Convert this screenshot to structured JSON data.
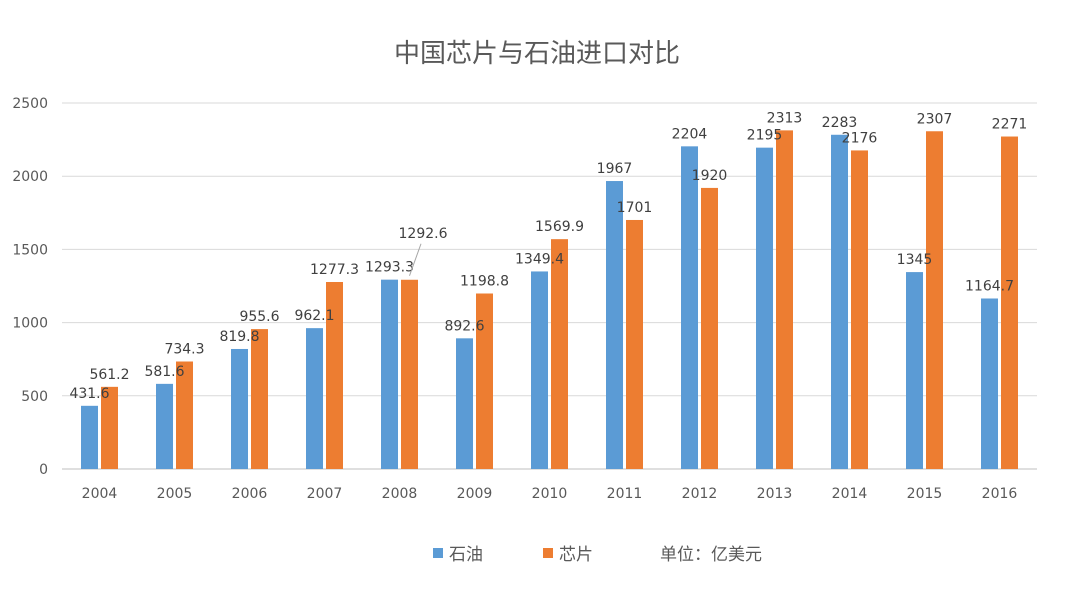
{
  "chart_data": {
    "type": "bar",
    "title": "中国芯片与石油进口对比",
    "xlabel": "",
    "ylabel": "",
    "categories": [
      "2004",
      "2005",
      "2006",
      "2007",
      "2008",
      "2009",
      "2010",
      "2011",
      "2012",
      "2013",
      "2014",
      "2015",
      "2016"
    ],
    "series": [
      {
        "name": "石油",
        "color": "#5b9bd5",
        "values": [
          431.6,
          581.6,
          819.8,
          962.1,
          1293.3,
          892.6,
          1349.4,
          1967,
          2204,
          2195,
          2283,
          1345,
          1164.7
        ],
        "labels": [
          "431.6",
          "581.6",
          "819.8",
          "962.1",
          "1293.3",
          "892.6",
          "1349.4",
          "1967",
          "2204",
          "2195",
          "2283",
          "1345",
          "1164.7"
        ]
      },
      {
        "name": "芯片",
        "color": "#ed7d31",
        "values": [
          561.2,
          734.3,
          955.6,
          1277.3,
          1292.6,
          1198.8,
          1569.9,
          1701,
          1920,
          2313,
          2176,
          2307,
          2271
        ],
        "labels": [
          "561.2",
          "734.3",
          "955.6",
          "1277.3",
          "1292.6",
          "1198.8",
          "1569.9",
          "1701",
          "1920",
          "2313",
          "2176",
          "2307",
          "2271"
        ]
      }
    ],
    "ylim": [
      0,
      2500
    ],
    "yticks": [
      "0",
      "500",
      "1000",
      "1500",
      "2000",
      "2500"
    ],
    "ytick_values": [
      0,
      500,
      1000,
      1500,
      2000,
      2500
    ],
    "grid": true,
    "legend": "bottom",
    "unit_note": "单位：亿美元"
  }
}
